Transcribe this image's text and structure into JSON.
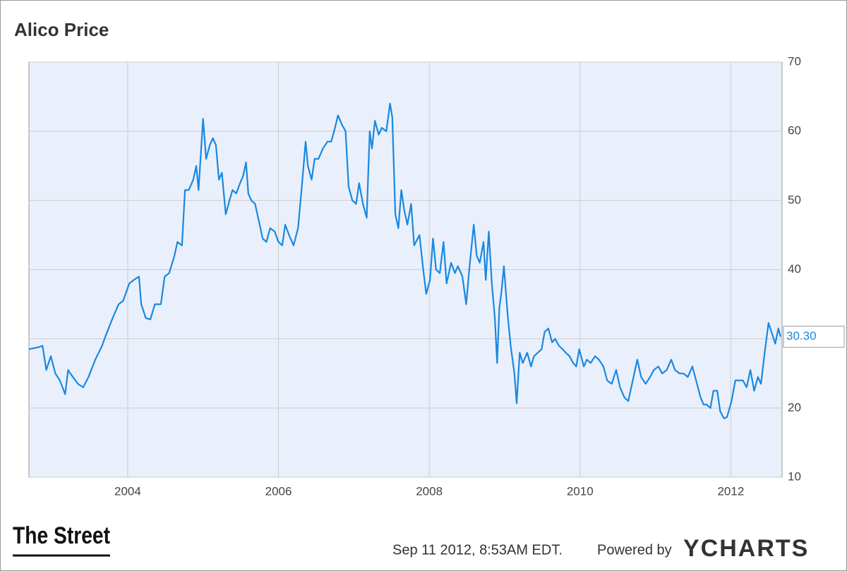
{
  "chart_data": {
    "type": "line",
    "title": "Alico Price",
    "x": [
      2002.69,
      2002.82,
      2002.87,
      2002.92,
      2002.98,
      2003.04,
      2003.1,
      2003.17,
      2003.21,
      2003.24,
      2003.34,
      2003.41,
      2003.48,
      2003.57,
      2003.66,
      2003.71,
      2003.8,
      2003.88,
      2003.94,
      2004.02,
      2004.08,
      2004.15,
      2004.18,
      2004.24,
      2004.3,
      2004.36,
      2004.44,
      2004.49,
      2004.55,
      2004.62,
      2004.66,
      2004.72,
      2004.76,
      2004.81,
      2004.87,
      2004.91,
      2004.94,
      2005.0,
      2005.04,
      2005.09,
      2005.13,
      2005.17,
      2005.21,
      2005.25,
      2005.3,
      2005.35,
      2005.39,
      2005.44,
      2005.49,
      2005.53,
      2005.57,
      2005.6,
      2005.64,
      2005.69,
      2005.74,
      2005.79,
      2005.84,
      2005.89,
      2005.95,
      2006.0,
      2006.05,
      2006.09,
      2006.14,
      2006.2,
      2006.26,
      2006.31,
      2006.36,
      2006.39,
      2006.44,
      2006.48,
      2006.53,
      2006.59,
      2006.65,
      2006.7,
      2006.75,
      2006.79,
      2006.84,
      2006.89,
      2006.93,
      2006.98,
      2007.03,
      2007.07,
      2007.12,
      2007.17,
      2007.21,
      2007.24,
      2007.28,
      2007.33,
      2007.37,
      2007.43,
      2007.48,
      2007.51,
      2007.55,
      2007.59,
      2007.63,
      2007.67,
      2007.71,
      2007.76,
      2007.8,
      2007.87,
      2007.92,
      2007.96,
      2008.01,
      2008.05,
      2008.09,
      2008.14,
      2008.19,
      2008.23,
      2008.29,
      2008.34,
      2008.38,
      2008.44,
      2008.49,
      2008.53,
      2008.59,
      2008.63,
      2008.67,
      2008.72,
      2008.75,
      2008.79,
      2008.83,
      2008.87,
      2008.9,
      2008.93,
      2008.96,
      2008.99,
      2009.04,
      2009.08,
      2009.13,
      2009.16,
      2009.2,
      2009.24,
      2009.3,
      2009.35,
      2009.39,
      2009.44,
      2009.49,
      2009.53,
      2009.58,
      2009.63,
      2009.67,
      2009.72,
      2009.77,
      2009.81,
      2009.86,
      2009.91,
      2009.95,
      2009.99,
      2010.05,
      2010.09,
      2010.14,
      2010.2,
      2010.25,
      2010.31,
      2010.36,
      2010.42,
      2010.48,
      2010.53,
      2010.59,
      2010.64,
      2010.7,
      2010.76,
      2010.81,
      2010.87,
      2010.93,
      2010.98,
      2011.04,
      2011.09,
      2011.15,
      2011.21,
      2011.26,
      2011.32,
      2011.37,
      2011.43,
      2011.49,
      2011.54,
      2011.6,
      2011.64,
      2011.68,
      2011.73,
      2011.77,
      2011.82,
      2011.86,
      2011.91,
      2011.95,
      2012.01,
      2012.06,
      2012.1,
      2012.16,
      2012.21,
      2012.26,
      2012.31,
      2012.36,
      2012.4,
      2012.45,
      2012.5,
      2012.54,
      2012.59,
      2012.63,
      2012.66
    ],
    "values": [
      28.5,
      28.8,
      29,
      25.5,
      27.5,
      25,
      24,
      22,
      25.5,
      25,
      23.5,
      23,
      24.5,
      27,
      29,
      30.5,
      33,
      35,
      35.5,
      38,
      38.5,
      39,
      35,
      33,
      32.8,
      35,
      35,
      39,
      39.5,
      42,
      44,
      43.5,
      51.5,
      51.5,
      53,
      55,
      51.5,
      61.8,
      56,
      58,
      59,
      58,
      53,
      54,
      48,
      50,
      51.5,
      51,
      52.5,
      53.5,
      55.5,
      51,
      50,
      49.5,
      47,
      44.5,
      44,
      46,
      45.5,
      44,
      43.5,
      46.5,
      45,
      43.5,
      46,
      52,
      58.5,
      55,
      53,
      56,
      56,
      57.5,
      58.5,
      58.5,
      60.5,
      62.3,
      61,
      60,
      52,
      50,
      49.5,
      52.5,
      49.5,
      47.5,
      60,
      57.5,
      61.5,
      59.5,
      60.5,
      60,
      64,
      62,
      48,
      46,
      51.5,
      48.5,
      46.5,
      49.5,
      43.5,
      45,
      40,
      36.5,
      38.5,
      44.5,
      40,
      39.5,
      44,
      38,
      41,
      39.5,
      40.5,
      39,
      35,
      40,
      46.5,
      42,
      41,
      44,
      38.5,
      45.5,
      38,
      33,
      26.5,
      34.5,
      37,
      40.5,
      33.5,
      29,
      25,
      20.7,
      28,
      26.5,
      28,
      26,
      27.5,
      28,
      28.5,
      31,
      31.5,
      29.5,
      30,
      29,
      28.5,
      28,
      27.5,
      26.5,
      26,
      28.5,
      26,
      27,
      26.5,
      27.5,
      27,
      26,
      24,
      23.5,
      25.5,
      23,
      21.5,
      21,
      24,
      27,
      24.5,
      23.5,
      24.5,
      25.5,
      26,
      25,
      25.5,
      27,
      25.5,
      25,
      25,
      24.5,
      26,
      24,
      21.5,
      20.5,
      20.5,
      20,
      22.5,
      22.5,
      19.5,
      18.5,
      18.7,
      21,
      24,
      24,
      24,
      23,
      25.5,
      22.5,
      24.5,
      23.5,
      28,
      32.3,
      31,
      29.3,
      31.5,
      30.3
    ],
    "value_labels": [
      null,
      null,
      null,
      null,
      null,
      null,
      null,
      null,
      null,
      null,
      null,
      null,
      null,
      null,
      null,
      null,
      null,
      null,
      null,
      null,
      null,
      null,
      null,
      null,
      null,
      null,
      null,
      null,
      null,
      null,
      null,
      null,
      null,
      null,
      null,
      null,
      null,
      null,
      null,
      null,
      null,
      null,
      null,
      null,
      null,
      null,
      null,
      null,
      null,
      null,
      null,
      null,
      null,
      null,
      null,
      null,
      null,
      null,
      null,
      null,
      null,
      null,
      null,
      null,
      null,
      null,
      null,
      null,
      null,
      null,
      null,
      null,
      null,
      null,
      null,
      null,
      null,
      null,
      null,
      null,
      null,
      null,
      null,
      null,
      null,
      null,
      null,
      null,
      null,
      null,
      null,
      null,
      null,
      null,
      null,
      null,
      null,
      null,
      null,
      null,
      null,
      null,
      null,
      null,
      null,
      null,
      null,
      null,
      null,
      null,
      null,
      null,
      null,
      null,
      null,
      null,
      null,
      null,
      null,
      null,
      null,
      null,
      null,
      null,
      null,
      null,
      null,
      null,
      null,
      null,
      null,
      null,
      null,
      null,
      null,
      null,
      null,
      null,
      null,
      null,
      null,
      null,
      null,
      null,
      null,
      null,
      null,
      null,
      null,
      null,
      null,
      null,
      null,
      null,
      null,
      null,
      null,
      null,
      null,
      null,
      null,
      null,
      null,
      null,
      null,
      null,
      null,
      null,
      null,
      null,
      null,
      null,
      null,
      null,
      null,
      null,
      null,
      null,
      null,
      null,
      null,
      null,
      null,
      null,
      null,
      null,
      null,
      null,
      null,
      null,
      null,
      null,
      null,
      null,
      null,
      null,
      null,
      null,
      null,
      "30.30"
    ],
    "color": "#1a88e0",
    "xlim": [
      2002.69,
      2012.68
    ],
    "xticks": [
      2004,
      2006,
      2008,
      2010,
      2012
    ],
    "ylim": [
      10,
      70
    ],
    "yticks": [
      10,
      20,
      30,
      40,
      50,
      60,
      70
    ],
    "grid": true,
    "logo": "The Street",
    "timestamp": "Sep 11 2012, 8:53AM EDT.",
    "credit": "Powered by",
    "brand": "YCHARTS"
  }
}
